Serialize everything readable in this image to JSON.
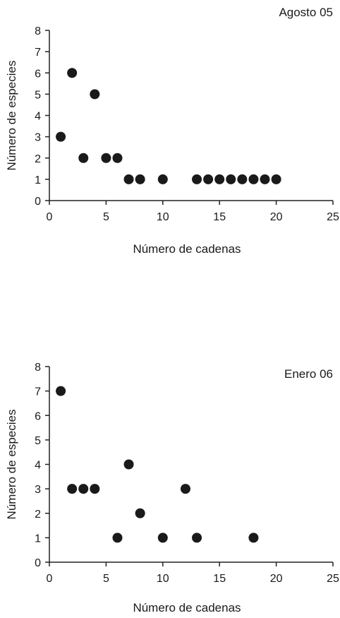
{
  "chart_data": [
    {
      "type": "scatter",
      "title": "Agosto 05",
      "xlabel": "Número de cadenas",
      "ylabel": "Número de especies",
      "xlim": [
        0,
        25
      ],
      "ylim": [
        0,
        8
      ],
      "xticks": [
        0,
        5,
        10,
        15,
        20,
        25
      ],
      "yticks": [
        0,
        1,
        2,
        3,
        4,
        5,
        6,
        7,
        8
      ],
      "grid": false,
      "points": [
        {
          "x": 1,
          "y": 3
        },
        {
          "x": 2,
          "y": 6
        },
        {
          "x": 3,
          "y": 2
        },
        {
          "x": 4,
          "y": 5
        },
        {
          "x": 5,
          "y": 2
        },
        {
          "x": 6,
          "y": 2
        },
        {
          "x": 7,
          "y": 1
        },
        {
          "x": 8,
          "y": 1
        },
        {
          "x": 10,
          "y": 1
        },
        {
          "x": 13,
          "y": 1
        },
        {
          "x": 14,
          "y": 1
        },
        {
          "x": 15,
          "y": 1
        },
        {
          "x": 16,
          "y": 1
        },
        {
          "x": 17,
          "y": 1
        },
        {
          "x": 18,
          "y": 1
        },
        {
          "x": 19,
          "y": 1
        },
        {
          "x": 20,
          "y": 1
        }
      ]
    },
    {
      "type": "scatter",
      "title": "Enero 06",
      "xlabel": "Número de cadenas",
      "ylabel": "Número de especies",
      "xlim": [
        0,
        25
      ],
      "ylim": [
        0,
        8
      ],
      "xticks": [
        0,
        5,
        10,
        15,
        20,
        25
      ],
      "yticks": [
        0,
        1,
        2,
        3,
        4,
        5,
        6,
        7,
        8
      ],
      "grid": false,
      "points": [
        {
          "x": 1,
          "y": 7
        },
        {
          "x": 2,
          "y": 3
        },
        {
          "x": 3,
          "y": 3
        },
        {
          "x": 4,
          "y": 3
        },
        {
          "x": 6,
          "y": 1
        },
        {
          "x": 7,
          "y": 4
        },
        {
          "x": 8,
          "y": 2
        },
        {
          "x": 10,
          "y": 1
        },
        {
          "x": 12,
          "y": 3
        },
        {
          "x": 13,
          "y": 1
        },
        {
          "x": 18,
          "y": 1
        }
      ]
    }
  ]
}
